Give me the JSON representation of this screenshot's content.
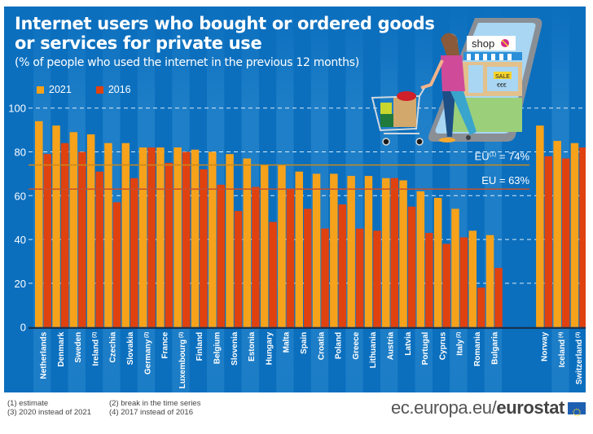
{
  "header": {
    "title_line1": "Internet users who bought or ordered goods",
    "title_line2": "or services for private use",
    "subtitle": "(% of people who used the internet in the previous 12 months)"
  },
  "colors": {
    "background": "#0b6fbe",
    "stripe": "#3b93d6",
    "series_2021": "#f7a21b",
    "series_2016": "#e0420f",
    "eu_line_2021": "#c8891c",
    "eu_line_2016": "#c6502a"
  },
  "illustration": {
    "shop_sign": "shop",
    "sale_label": "SALE",
    "price_label": "€€€",
    "icon": "online-shopping-illustration"
  },
  "chart_data": {
    "type": "bar",
    "title": "Internet users who bought or ordered goods or services for private use",
    "subtitle": "(% of people who used the internet in the previous 12 months)",
    "xlabel": "",
    "ylabel": "",
    "ylim": [
      0,
      100
    ],
    "yticks": [
      0,
      20,
      40,
      60,
      80,
      100
    ],
    "grid": true,
    "legend_position": "top-left",
    "categories": [
      "Netherlands",
      "Denmark",
      "Sweden",
      "Ireland",
      "Czechia",
      "Slovakia",
      "Germany",
      "France",
      "Luxembourg",
      "Finland",
      "Belgium",
      "Slovenia",
      "Estonia",
      "Hungary",
      "Malta",
      "Spain",
      "Croatia",
      "Poland",
      "Greece",
      "Lithuania",
      "Austria",
      "Latvia",
      "Portugal",
      "Cyprus",
      "Italy",
      "Romania",
      "Bulgaria",
      "Norway",
      "Iceland",
      "Switzerland"
    ],
    "category_notes": [
      "",
      "",
      "",
      "(2)",
      "",
      "",
      "(2)",
      "",
      "(2)",
      "",
      "",
      "",
      "",
      "",
      "",
      "",
      "",
      "",
      "",
      "",
      "",
      "",
      "",
      "",
      "(2)",
      "",
      "",
      "",
      "(4)",
      "(3)"
    ],
    "group_break_before": "Norway",
    "series": [
      {
        "name": "2021",
        "values": [
          94,
          92,
          89,
          88,
          84,
          84,
          82,
          82,
          82,
          81,
          80,
          79,
          77,
          74,
          74,
          71,
          70,
          70,
          69,
          69,
          68,
          67,
          62,
          59,
          54,
          44,
          42,
          92,
          85,
          84
        ]
      },
      {
        "name": "2016",
        "values": [
          79,
          84,
          80,
          71,
          57,
          68,
          82,
          75,
          80,
          72,
          65,
          53,
          64,
          48,
          63,
          54,
          45,
          56,
          45,
          44,
          68,
          55,
          43,
          38,
          41,
          18,
          27,
          78,
          77,
          82
        ]
      }
    ],
    "reference_lines": [
      {
        "label": "EU",
        "sup": "(1)",
        "text": " = 74%",
        "value": 74,
        "series": "2021"
      },
      {
        "label": "EU",
        "sup": "",
        "text": " = 63%",
        "value": 63,
        "series": "2016"
      }
    ]
  },
  "footer": {
    "notes": [
      "(1) estimate",
      "(3) 2020 instead of 2021",
      "(2) break in the time series",
      "(4) 2017 instead of 2016"
    ],
    "brand_plain": "ec.europa.eu/",
    "brand_bold": "eurostat"
  }
}
